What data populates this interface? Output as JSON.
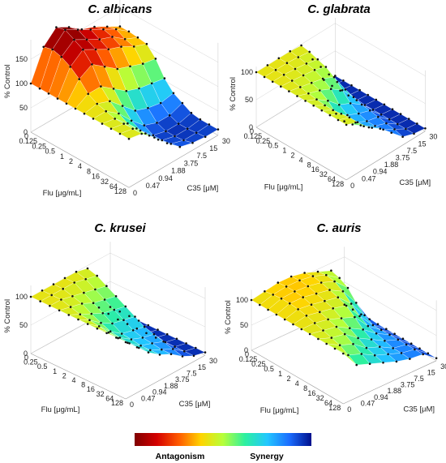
{
  "chart_data": [
    {
      "type": "heatmap",
      "subtype": "3d-surface",
      "title": "C. albicans",
      "xlabel": "Flu [μg/mL]",
      "ylabel": "C35 [μM]",
      "zlabel": "% Control",
      "x_ticks": [
        "0",
        "0.125",
        "0.25",
        "0.5",
        "1",
        "2",
        "4",
        "8",
        "16",
        "32",
        "64",
        "128"
      ],
      "y_ticks": [
        "0",
        "0.47",
        "0.94",
        "1.88",
        "3.75",
        "7.5",
        "15",
        "30"
      ],
      "z_ticks": [
        "0",
        "50",
        "100",
        "150"
      ],
      "zlim": [
        0,
        190
      ],
      "z": [
        [
          100,
          160,
          185,
          170,
          150,
          140,
          125,
          110
        ],
        [
          100,
          165,
          190,
          175,
          160,
          145,
          130,
          110
        ],
        [
          100,
          160,
          180,
          165,
          150,
          140,
          120,
          108
        ],
        [
          100,
          150,
          170,
          155,
          140,
          130,
          115,
          105
        ],
        [
          100,
          135,
          150,
          130,
          110,
          100,
          90,
          85
        ],
        [
          100,
          115,
          115,
          95,
          75,
          65,
          60,
          55
        ],
        [
          100,
          105,
          95,
          70,
          45,
          35,
          30,
          35
        ],
        [
          100,
          100,
          80,
          50,
          25,
          15,
          15,
          25
        ],
        [
          100,
          95,
          70,
          40,
          15,
          8,
          8,
          15
        ],
        [
          100,
          95,
          70,
          40,
          15,
          8,
          8,
          12
        ],
        [
          100,
          95,
          70,
          42,
          18,
          10,
          10,
          12
        ],
        [
          100,
          95,
          72,
          45,
          22,
          15,
          12,
          12
        ]
      ]
    },
    {
      "type": "heatmap",
      "subtype": "3d-surface",
      "title": "C. glabrata",
      "xlabel": "Flu [μg/mL]",
      "ylabel": "C35 [μM]",
      "zlabel": "% Control",
      "x_ticks": [
        "0",
        "0.125",
        "0.25",
        "0.5",
        "1",
        "2",
        "4",
        "8",
        "16",
        "32",
        "64",
        "128"
      ],
      "y_ticks": [
        "0",
        "0.47",
        "0.94",
        "1.88",
        "3.75",
        "7.5",
        "15",
        "30"
      ],
      "z_ticks": [
        "0",
        "50",
        "100"
      ],
      "zlim": [
        0,
        110
      ],
      "z": [
        [
          100,
          100,
          100,
          100,
          98,
          60,
          10,
          5
        ],
        [
          100,
          100,
          100,
          98,
          95,
          55,
          8,
          5
        ],
        [
          100,
          100,
          98,
          95,
          90,
          50,
          8,
          5
        ],
        [
          100,
          98,
          95,
          92,
          85,
          45,
          8,
          5
        ],
        [
          100,
          95,
          90,
          85,
          75,
          40,
          8,
          5
        ],
        [
          100,
          92,
          85,
          75,
          60,
          35,
          8,
          5
        ],
        [
          100,
          90,
          75,
          55,
          45,
          30,
          8,
          5
        ],
        [
          100,
          88,
          60,
          45,
          35,
          28,
          8,
          5
        ],
        [
          100,
          88,
          55,
          40,
          30,
          25,
          8,
          5
        ],
        [
          100,
          90,
          58,
          42,
          30,
          22,
          8,
          5
        ],
        [
          100,
          92,
          65,
          48,
          32,
          20,
          8,
          5
        ],
        [
          100,
          92,
          70,
          55,
          35,
          15,
          8,
          5
        ]
      ]
    },
    {
      "type": "heatmap",
      "subtype": "3d-surface",
      "title": "C. krusei",
      "xlabel": "Flu [μg/mL]",
      "ylabel": "C35 [μM]",
      "zlabel": "% Control",
      "x_ticks": [
        "0",
        "0.25",
        "0.5",
        "1",
        "2",
        "4",
        "8",
        "16",
        "32",
        "64",
        "128"
      ],
      "y_ticks": [
        "0",
        "0.47",
        "0.94",
        "1.88",
        "3.75",
        "7.5",
        "15",
        "30"
      ],
      "z_ticks": [
        "0",
        "50",
        "100"
      ],
      "zlim": [
        0,
        120
      ],
      "z": [
        [
          100,
          100,
          100,
          100,
          100,
          95,
          15,
          5
        ],
        [
          100,
          100,
          100,
          100,
          95,
          90,
          12,
          5
        ],
        [
          100,
          100,
          95,
          90,
          85,
          80,
          10,
          5
        ],
        [
          100,
          95,
          90,
          80,
          75,
          70,
          10,
          5
        ],
        [
          100,
          90,
          80,
          70,
          65,
          60,
          10,
          5
        ],
        [
          100,
          88,
          72,
          60,
          55,
          50,
          10,
          5
        ],
        [
          100,
          85,
          65,
          50,
          45,
          40,
          10,
          5
        ],
        [
          100,
          82,
          62,
          48,
          40,
          35,
          10,
          5
        ],
        [
          100,
          80,
          60,
          45,
          38,
          30,
          10,
          5
        ],
        [
          100,
          80,
          60,
          45,
          35,
          25,
          10,
          5
        ],
        [
          100,
          80,
          60,
          45,
          35,
          20,
          10,
          5
        ]
      ]
    },
    {
      "type": "heatmap",
      "subtype": "3d-surface",
      "title": "C. auris",
      "xlabel": "Flu [μg/mL]",
      "ylabel": "C35 [μM]",
      "zlabel": "% Control",
      "x_ticks": [
        "0",
        "0.125",
        "0.25",
        "0.5",
        "1",
        "2",
        "4",
        "8",
        "16",
        "32",
        "64",
        "128"
      ],
      "y_ticks": [
        "0",
        "0.47",
        "0.94",
        "1.88",
        "3.75",
        "7.5",
        "15",
        "30"
      ],
      "z_ticks": [
        "0",
        "50",
        "100"
      ],
      "zlim": [
        0,
        120
      ],
      "z": [
        [
          100,
          105,
          110,
          110,
          105,
          95,
          85,
          5
        ],
        [
          100,
          108,
          112,
          112,
          108,
          98,
          80,
          5
        ],
        [
          100,
          110,
          112,
          110,
          105,
          95,
          70,
          5
        ],
        [
          100,
          110,
          110,
          105,
          100,
          85,
          50,
          5
        ],
        [
          100,
          108,
          105,
          100,
          95,
          70,
          35,
          5
        ],
        [
          100,
          105,
          100,
          95,
          88,
          55,
          25,
          5
        ],
        [
          100,
          100,
          95,
          85,
          75,
          45,
          25,
          5
        ],
        [
          100,
          95,
          90,
          75,
          60,
          40,
          25,
          5
        ],
        [
          100,
          90,
          85,
          65,
          50,
          35,
          25,
          5
        ],
        [
          100,
          85,
          75,
          55,
          45,
          30,
          25,
          5
        ],
        [
          100,
          75,
          65,
          50,
          40,
          30,
          25,
          5
        ],
        [
          100,
          65,
          55,
          45,
          35,
          28,
          25,
          5
        ]
      ]
    }
  ],
  "colorbar": {
    "left_label": "Antagonism",
    "right_label": "Synergy",
    "stops": [
      "#7f0000",
      "#d40000",
      "#ff5a00",
      "#ffd400",
      "#b6ff3a",
      "#2cf0a0",
      "#22c7ff",
      "#1b6dff",
      "#00108c"
    ]
  }
}
